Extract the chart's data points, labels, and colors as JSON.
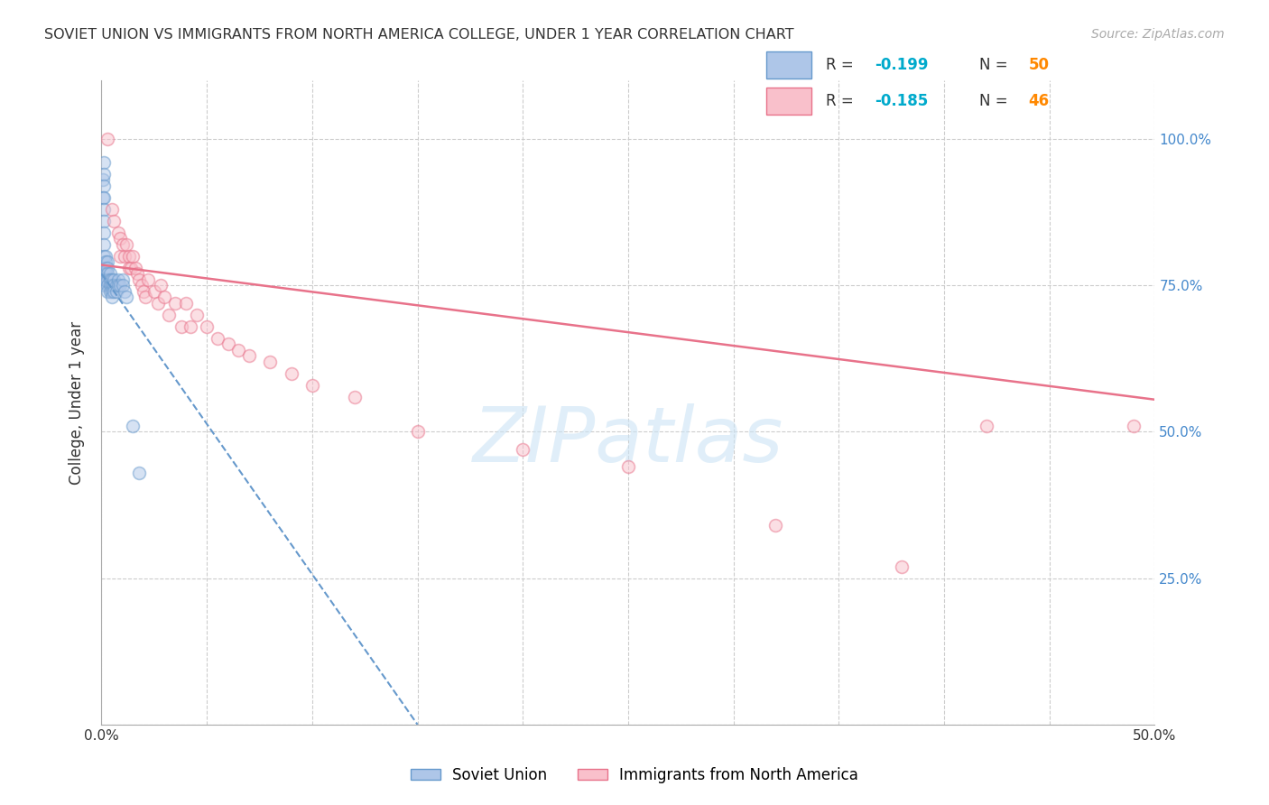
{
  "title": "SOVIET UNION VS IMMIGRANTS FROM NORTH AMERICA COLLEGE, UNDER 1 YEAR CORRELATION CHART",
  "source": "Source: ZipAtlas.com",
  "ylabel": "College, Under 1 year",
  "xlim": [
    0.0,
    0.5
  ],
  "ylim": [
    0.0,
    1.1
  ],
  "xticks": [
    0.0,
    0.05,
    0.1,
    0.15,
    0.2,
    0.25,
    0.3,
    0.35,
    0.4,
    0.45,
    0.5
  ],
  "ytick_positions": [
    0.0,
    0.25,
    0.5,
    0.75,
    1.0
  ],
  "ytick_labels": [
    "",
    "25.0%",
    "50.0%",
    "75.0%",
    "100.0%"
  ],
  "blue_r": -0.199,
  "blue_n": 50,
  "pink_r": -0.185,
  "pink_n": 46,
  "blue_color": "#aec6e8",
  "pink_color": "#f9c0cb",
  "blue_edge": "#6699cc",
  "pink_edge": "#e8728a",
  "blue_scatter_x": [
    0.0005,
    0.0005,
    0.001,
    0.001,
    0.001,
    0.001,
    0.001,
    0.001,
    0.001,
    0.001,
    0.001,
    0.001,
    0.001,
    0.001,
    0.001,
    0.0015,
    0.0015,
    0.002,
    0.002,
    0.002,
    0.002,
    0.002,
    0.003,
    0.003,
    0.003,
    0.003,
    0.003,
    0.003,
    0.004,
    0.004,
    0.004,
    0.004,
    0.005,
    0.005,
    0.005,
    0.005,
    0.006,
    0.006,
    0.006,
    0.007,
    0.007,
    0.008,
    0.008,
    0.009,
    0.01,
    0.01,
    0.011,
    0.012,
    0.015,
    0.018
  ],
  "blue_scatter_y": [
    0.93,
    0.9,
    0.96,
    0.94,
    0.92,
    0.9,
    0.88,
    0.86,
    0.84,
    0.82,
    0.8,
    0.78,
    0.77,
    0.76,
    0.75,
    0.78,
    0.76,
    0.8,
    0.79,
    0.78,
    0.77,
    0.76,
    0.79,
    0.78,
    0.77,
    0.76,
    0.75,
    0.74,
    0.77,
    0.76,
    0.75,
    0.74,
    0.76,
    0.75,
    0.74,
    0.73,
    0.76,
    0.75,
    0.74,
    0.75,
    0.74,
    0.76,
    0.75,
    0.75,
    0.76,
    0.75,
    0.74,
    0.73,
    0.51,
    0.43
  ],
  "pink_scatter_x": [
    0.003,
    0.005,
    0.006,
    0.008,
    0.009,
    0.009,
    0.01,
    0.011,
    0.012,
    0.013,
    0.013,
    0.014,
    0.015,
    0.016,
    0.017,
    0.018,
    0.019,
    0.02,
    0.021,
    0.022,
    0.025,
    0.027,
    0.028,
    0.03,
    0.032,
    0.035,
    0.038,
    0.04,
    0.042,
    0.045,
    0.05,
    0.055,
    0.06,
    0.065,
    0.07,
    0.08,
    0.09,
    0.1,
    0.12,
    0.15,
    0.2,
    0.25,
    0.32,
    0.38,
    0.42,
    0.49
  ],
  "pink_scatter_y": [
    1.0,
    0.88,
    0.86,
    0.84,
    0.83,
    0.8,
    0.82,
    0.8,
    0.82,
    0.8,
    0.78,
    0.78,
    0.8,
    0.78,
    0.77,
    0.76,
    0.75,
    0.74,
    0.73,
    0.76,
    0.74,
    0.72,
    0.75,
    0.73,
    0.7,
    0.72,
    0.68,
    0.72,
    0.68,
    0.7,
    0.68,
    0.66,
    0.65,
    0.64,
    0.63,
    0.62,
    0.6,
    0.58,
    0.56,
    0.5,
    0.47,
    0.44,
    0.34,
    0.27,
    0.51,
    0.51
  ],
  "blue_line_x": [
    0.0,
    0.15
  ],
  "blue_line_y": [
    0.77,
    0.0
  ],
  "pink_line_x": [
    0.0,
    0.5
  ],
  "pink_line_y": [
    0.785,
    0.555
  ],
  "watermark_text": "ZIPatlas",
  "marker_size": 100,
  "alpha_scatter": 0.5
}
